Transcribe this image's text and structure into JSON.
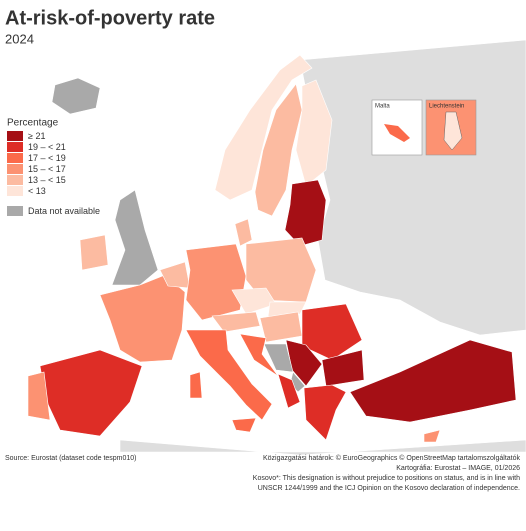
{
  "title": "At-risk-of-poverty rate",
  "subtitle": "2024",
  "legend": {
    "title": "Percentage",
    "items": [
      {
        "label": "≥ 21",
        "color": "#a50f15"
      },
      {
        "label": "19 – < 21",
        "color": "#de2d26"
      },
      {
        "label": "17 – < 19",
        "color": "#fb6a4a"
      },
      {
        "label": "15 – < 17",
        "color": "#fc9272"
      },
      {
        "label": "13 – < 15",
        "color": "#fcbba1"
      },
      {
        "label": "< 13",
        "color": "#fee5d9"
      }
    ],
    "not_available": {
      "label": "Data not available",
      "color": "#a9a9a9"
    }
  },
  "insets": [
    "Malta",
    "Liechtenstein"
  ],
  "footer": {
    "source": "Source: Eurostat (dataset code tespm010)",
    "notes": [
      "Közigazgatási határok: © EuroGeographics © OpenStreetMap tartalomszolgáltatók",
      "Kartográfia: Eurostat – IMAGE, 01/2026",
      "Kosovo*: This designation is without prejudice to positions on status, and is in line with",
      "UNSCR 1244/1999 and the ICJ Opinion on the Kosovo declaration of independence."
    ]
  }
}
